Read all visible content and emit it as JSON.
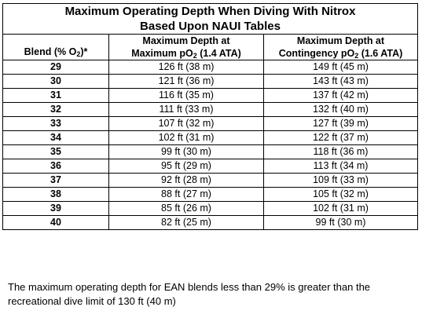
{
  "table": {
    "title_line1": "Maximum Operating Depth When Diving With Nitrox",
    "title_line2": "Based Upon NAUI Tables",
    "headers": {
      "blend": "Blend (% O",
      "blend_sub": "2",
      "blend_suffix": ")*",
      "col2_line1": "Maximum Depth at",
      "col2_line2": "Maximum pO",
      "col2_sub": "2",
      "col2_suffix": " (1.4 ATA)",
      "col3_line1": "Maximum Depth at",
      "col3_line2": "Contingency pO",
      "col3_sub": "2",
      "col3_suffix": " (1.6 ATA)"
    },
    "rows": [
      {
        "blend": "29",
        "max": "126 ft (38 m)",
        "contingency": "149 ft (45 m)"
      },
      {
        "blend": "30",
        "max": "121 ft (36 m)",
        "contingency": "143 ft (43 m)"
      },
      {
        "blend": "31",
        "max": "116 ft (35 m)",
        "contingency": "137 ft (42 m)"
      },
      {
        "blend": "32",
        "max": "111 ft (33 m)",
        "contingency": "132 ft (40 m)"
      },
      {
        "blend": "33",
        "max": "107 ft (32 m)",
        "contingency": "127 ft (39 m)"
      },
      {
        "blend": "34",
        "max": "102 ft (31 m)",
        "contingency": "122 ft (37 m)"
      },
      {
        "blend": "35",
        "max": "99 ft (30 m)",
        "contingency": "118 ft (36 m)"
      },
      {
        "blend": "36",
        "max": "95 ft (29 m)",
        "contingency": "113 ft (34 m)"
      },
      {
        "blend": "37",
        "max": "92 ft (28 m)",
        "contingency": "109 ft (33 m)"
      },
      {
        "blend": "38",
        "max": "88 ft (27 m)",
        "contingency": "105 ft (32 m)"
      },
      {
        "blend": "39",
        "max": "85 ft (26 m)",
        "contingency": "102 ft (31 m)"
      },
      {
        "blend": "40",
        "max": "82 ft (25 m)",
        "contingency": "99 ft (30 m)"
      }
    ]
  },
  "footnote": "The maximum operating depth for EAN blends less than 29% is greater than the recreational dive limit of 130 ft (40 m)"
}
